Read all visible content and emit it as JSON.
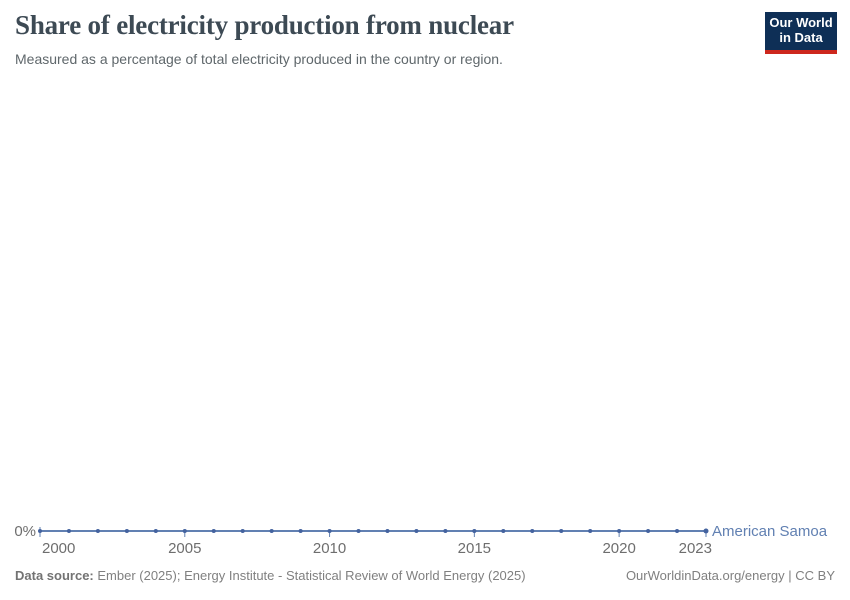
{
  "logo": {
    "line1": "Our World",
    "line2": "in Data",
    "bg_color": "#0e2f56",
    "accent_color": "#cd271d"
  },
  "chart_data": {
    "type": "line",
    "title": "Share of electricity production from nuclear",
    "subtitle": "Measured as a percentage of total electricity produced in the country or region.",
    "xlabel": "",
    "ylabel": "",
    "grid": false,
    "legend_position": "end-of-line",
    "x_ticks": [
      2000,
      2005,
      2010,
      2015,
      2020,
      2023
    ],
    "y_tick_labels": [
      "0%"
    ],
    "ylim": [
      0,
      100
    ],
    "axis_text_color": "#6e6e6e",
    "series": [
      {
        "name": "American Samoa",
        "color": "#6180b2",
        "marker_color": "#44639f",
        "x": [
          2000,
          2001,
          2002,
          2003,
          2004,
          2005,
          2006,
          2007,
          2008,
          2009,
          2010,
          2011,
          2012,
          2013,
          2014,
          2015,
          2016,
          2017,
          2018,
          2019,
          2020,
          2021,
          2022,
          2023
        ],
        "values": [
          0,
          0,
          0,
          0,
          0,
          0,
          0,
          0,
          0,
          0,
          0,
          0,
          0,
          0,
          0,
          0,
          0,
          0,
          0,
          0,
          0,
          0,
          0,
          0
        ]
      }
    ]
  },
  "footer": {
    "source_label": "Data source:",
    "source_text": " Ember (2025); Energy Institute - Statistical Review of World Energy (2025)",
    "credit": "OurWorldinData.org/energy | CC BY"
  }
}
